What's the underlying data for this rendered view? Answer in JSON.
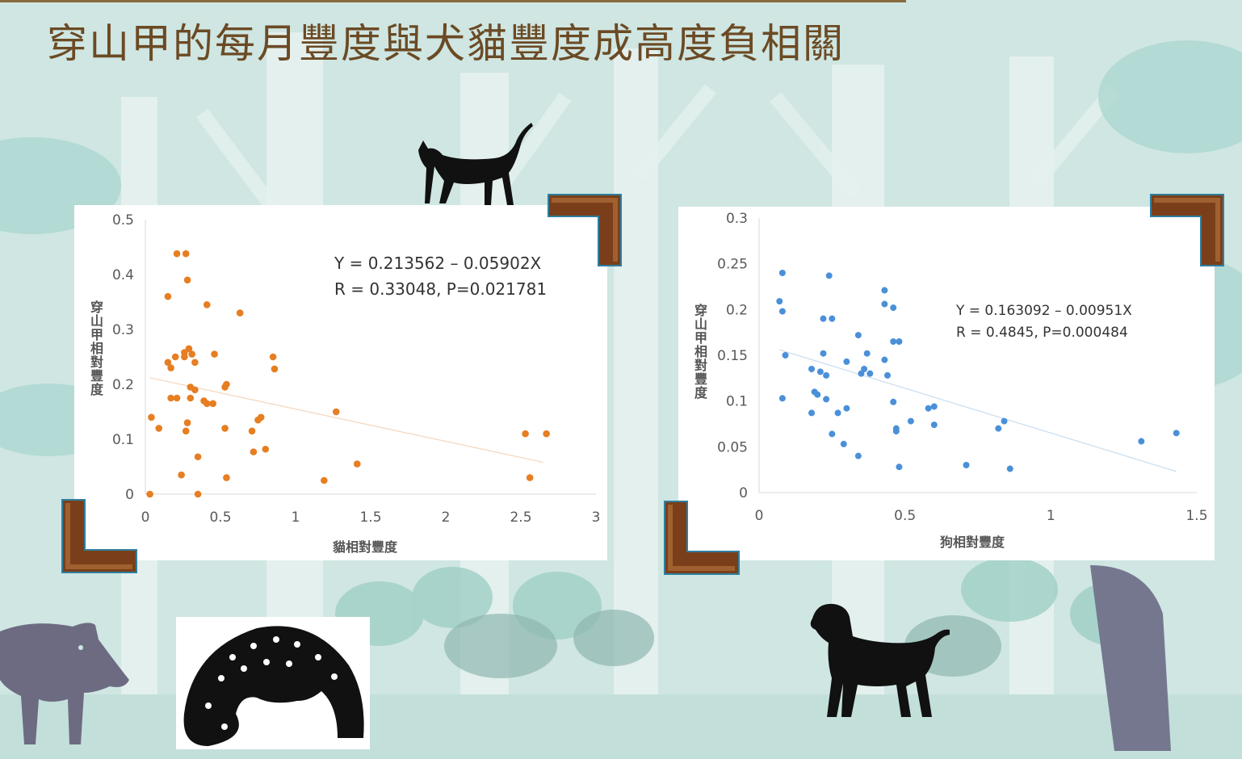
{
  "slide": {
    "title": "穿山甲的每月豐度與犬貓豐度成高度負相關"
  },
  "colors": {
    "background": "#cfe6e2",
    "title": "#6b4a24",
    "cat_series": "#e67e22",
    "dog_series": "#4a90d9",
    "frame_wood": "#7a3f1a",
    "frame_edge": "#2f7fa0"
  },
  "icons": [
    "cat-silhouette-icon",
    "dog-silhouette-icon",
    "boar-silhouette-icon",
    "pangolin-image-icon"
  ],
  "chart_data": [
    {
      "type": "scatter",
      "xlabel": "貓相對豐度",
      "ylabel": "穿山甲相對豐度",
      "xlim": [
        0,
        3
      ],
      "ylim": [
        0,
        0.5
      ],
      "xticks": [
        "0",
        "0.5",
        "1",
        "1.5",
        "2",
        "2.5",
        "3"
      ],
      "yticks": [
        "0",
        "0.1",
        "0.2",
        "0.3",
        "0.4",
        "0.5"
      ],
      "equation": "Y = 0.213562 – 0.05902X",
      "stats": "R = 0.33048, P=0.021781",
      "trendline": {
        "intercept": 0.213562,
        "slope": -0.05902,
        "x_range": [
          0.03,
          2.65
        ]
      },
      "grid": false,
      "color": "#e67e22",
      "points": [
        [
          0.21,
          0.438
        ],
        [
          0.27,
          0.438
        ],
        [
          0.28,
          0.39
        ],
        [
          0.15,
          0.36
        ],
        [
          0.41,
          0.345
        ],
        [
          0.63,
          0.33
        ],
        [
          0.29,
          0.265
        ],
        [
          0.26,
          0.258
        ],
        [
          0.31,
          0.255
        ],
        [
          0.46,
          0.255
        ],
        [
          0.85,
          0.25
        ],
        [
          0.15,
          0.24
        ],
        [
          0.2,
          0.25
        ],
        [
          0.26,
          0.25
        ],
        [
          0.33,
          0.24
        ],
        [
          0.17,
          0.23
        ],
        [
          0.86,
          0.228
        ],
        [
          0.54,
          0.2
        ],
        [
          0.3,
          0.195
        ],
        [
          0.33,
          0.19
        ],
        [
          0.53,
          0.195
        ],
        [
          0.17,
          0.175
        ],
        [
          0.21,
          0.175
        ],
        [
          0.3,
          0.175
        ],
        [
          0.39,
          0.17
        ],
        [
          0.41,
          0.165
        ],
        [
          0.45,
          0.165
        ],
        [
          1.27,
          0.15
        ],
        [
          0.04,
          0.14
        ],
        [
          0.28,
          0.13
        ],
        [
          0.75,
          0.135
        ],
        [
          0.77,
          0.14
        ],
        [
          0.53,
          0.12
        ],
        [
          0.09,
          0.12
        ],
        [
          0.27,
          0.115
        ],
        [
          0.71,
          0.115
        ],
        [
          2.53,
          0.11
        ],
        [
          2.67,
          0.11
        ],
        [
          0.8,
          0.082
        ],
        [
          0.72,
          0.077
        ],
        [
          0.35,
          0.068
        ],
        [
          1.41,
          0.055
        ],
        [
          0.24,
          0.035
        ],
        [
          0.54,
          0.03
        ],
        [
          2.56,
          0.03
        ],
        [
          1.19,
          0.025
        ],
        [
          0.03,
          0.0
        ],
        [
          0.35,
          0.0
        ]
      ]
    },
    {
      "type": "scatter",
      "xlabel": "狗相對豐度",
      "ylabel": "穿山甲相對豐度",
      "xlim": [
        0,
        1.5
      ],
      "ylim": [
        0,
        0.3
      ],
      "xticks": [
        "0",
        "0.5",
        "1",
        "1.5"
      ],
      "yticks": [
        "0",
        "0.05",
        "0.1",
        "0.15",
        "0.2",
        "0.25",
        "0.3"
      ],
      "equation": "Y = 0.163092 – 0.00951X",
      "stats": "R = 0.4845, P=0.000484",
      "trendline": {
        "intercept": 0.163092,
        "slope": -0.00951,
        "x_range": [
          0.07,
          1.43
        ]
      },
      "grid": false,
      "color": "#4a90d9",
      "points": [
        [
          0.08,
          0.24
        ],
        [
          0.24,
          0.237
        ],
        [
          0.43,
          0.221
        ],
        [
          0.07,
          0.209
        ],
        [
          0.43,
          0.206
        ],
        [
          0.08,
          0.198
        ],
        [
          0.46,
          0.202
        ],
        [
          0.22,
          0.19
        ],
        [
          0.25,
          0.19
        ],
        [
          0.34,
          0.172
        ],
        [
          0.46,
          0.165
        ],
        [
          0.48,
          0.165
        ],
        [
          0.09,
          0.15
        ],
        [
          0.22,
          0.152
        ],
        [
          0.37,
          0.152
        ],
        [
          0.3,
          0.143
        ],
        [
          0.43,
          0.145
        ],
        [
          0.36,
          0.135
        ],
        [
          0.35,
          0.13
        ],
        [
          0.38,
          0.13
        ],
        [
          0.18,
          0.135
        ],
        [
          0.21,
          0.132
        ],
        [
          0.23,
          0.128
        ],
        [
          0.44,
          0.128
        ],
        [
          0.19,
          0.11
        ],
        [
          0.2,
          0.107
        ],
        [
          0.08,
          0.103
        ],
        [
          0.23,
          0.102
        ],
        [
          0.46,
          0.099
        ],
        [
          0.58,
          0.092
        ],
        [
          0.6,
          0.094
        ],
        [
          0.3,
          0.092
        ],
        [
          0.27,
          0.087
        ],
        [
          0.18,
          0.087
        ],
        [
          0.52,
          0.078
        ],
        [
          0.6,
          0.074
        ],
        [
          0.47,
          0.07
        ],
        [
          0.47,
          0.067
        ],
        [
          0.84,
          0.078
        ],
        [
          0.82,
          0.07
        ],
        [
          0.25,
          0.064
        ],
        [
          1.43,
          0.065
        ],
        [
          1.31,
          0.056
        ],
        [
          0.29,
          0.053
        ],
        [
          0.34,
          0.04
        ],
        [
          0.48,
          0.028
        ],
        [
          0.71,
          0.03
        ],
        [
          0.86,
          0.026
        ]
      ]
    }
  ]
}
